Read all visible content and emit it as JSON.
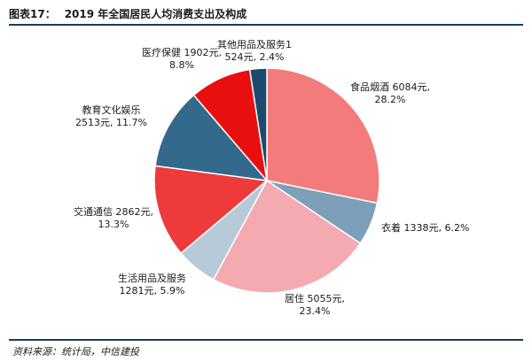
{
  "figure": {
    "number": "图表17：",
    "title": "2019 年全国居民人均消费支出及构成",
    "source": "资料来源：统计局，中信建投"
  },
  "chart_data": {
    "type": "pie",
    "title": "2019 年全国居民人均消费支出及构成",
    "unit": "元",
    "slices": [
      {
        "label": "食品烟酒",
        "value": 6084,
        "percent": 28.2,
        "color": "#f47b7b",
        "line1": "食品烟酒 6084元,",
        "line2": "28.2%"
      },
      {
        "label": "衣着",
        "value": 1338,
        "percent": 6.2,
        "color": "#7d9fb9",
        "line1": "衣着 1338元, 6.2%",
        "line2": ""
      },
      {
        "label": "居住",
        "value": 5055,
        "percent": 23.4,
        "color": "#f4aab0",
        "line1": "居住 5055元,",
        "line2": "23.4%"
      },
      {
        "label": "生活用品及服务",
        "value": 1281,
        "percent": 5.9,
        "color": "#b6cad9",
        "line1": "生活用品及服务",
        "line2": "1281元, 5.9%"
      },
      {
        "label": "交通通信",
        "value": 2862,
        "percent": 13.3,
        "color": "#ee3a3a",
        "line1": "交通通信 2862元,",
        "line2": "13.3%"
      },
      {
        "label": "教育文化娱乐",
        "value": 2513,
        "percent": 11.7,
        "color": "#336a8c",
        "line1": "教育文化娱乐",
        "line2": "2513元, 11.7%"
      },
      {
        "label": "医疗保健",
        "value": 1902,
        "percent": 8.8,
        "color": "#ea0f0f",
        "line1": "医疗保健 1902元,",
        "line2": "8.8%"
      },
      {
        "label": "其他用品及服务",
        "value": 524,
        "percent": 2.4,
        "color": "#1b4a6e",
        "line1": "其他用品及服务1",
        "line2": "524元, 2.4%"
      }
    ]
  }
}
